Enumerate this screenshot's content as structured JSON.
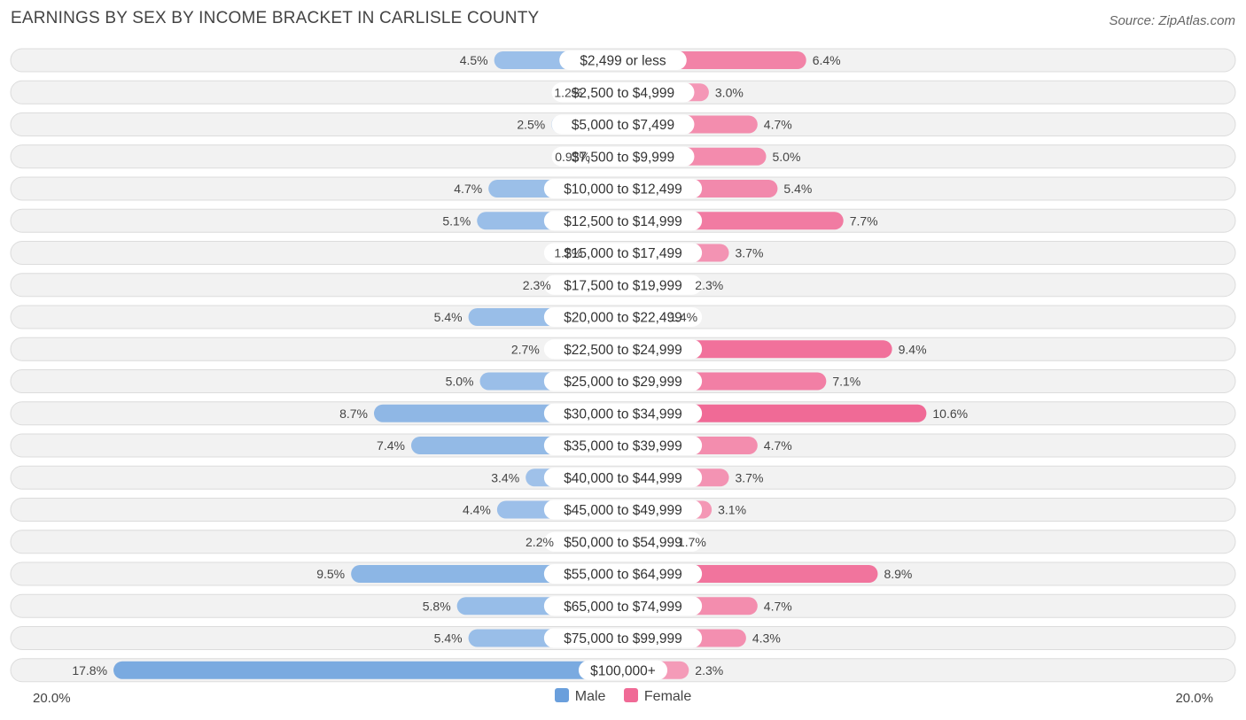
{
  "title": "EARNINGS BY SEX BY INCOME BRACKET IN CARLISLE COUNTY",
  "source": "Source: ZipAtlas.com",
  "colors": {
    "male": "#7aaae0",
    "male_light": "#a9c8ec",
    "female": "#f06a96",
    "female_light": "#f5a9c2",
    "row_bg": "#f2f2f2",
    "row_border": "#dcdcdc"
  },
  "legend": {
    "male": "Male",
    "female": "Female"
  },
  "axis": {
    "left_label": "20.0%",
    "right_label": "20.0%"
  },
  "chart_data": {
    "type": "bar",
    "orientation": "horizontal-diverging",
    "title": "EARNINGS BY SEX BY INCOME BRACKET IN CARLISLE COUNTY",
    "xlim": [
      -20,
      20
    ],
    "categories": [
      "$2,499 or less",
      "$2,500 to $4,999",
      "$5,000 to $7,499",
      "$7,500 to $9,999",
      "$10,000 to $12,499",
      "$12,500 to $14,999",
      "$15,000 to $17,499",
      "$17,500 to $19,999",
      "$20,000 to $22,499",
      "$22,500 to $24,999",
      "$25,000 to $29,999",
      "$30,000 to $34,999",
      "$35,000 to $39,999",
      "$40,000 to $44,999",
      "$45,000 to $49,999",
      "$50,000 to $54,999",
      "$55,000 to $64,999",
      "$65,000 to $74,999",
      "$75,000 to $99,999",
      "$100,000+"
    ],
    "series": [
      {
        "name": "Male",
        "values": [
          4.5,
          1.2,
          2.5,
          0.93,
          4.7,
          5.1,
          1.2,
          2.3,
          5.4,
          2.7,
          5.0,
          8.7,
          7.4,
          3.4,
          4.4,
          2.2,
          9.5,
          5.8,
          5.4,
          17.8
        ],
        "labels": [
          "4.5%",
          "1.2%",
          "2.5%",
          "0.93%",
          "4.7%",
          "5.1%",
          "1.2%",
          "2.3%",
          "5.4%",
          "2.7%",
          "5.0%",
          "8.7%",
          "7.4%",
          "3.4%",
          "4.4%",
          "2.2%",
          "9.5%",
          "5.8%",
          "5.4%",
          "17.8%"
        ]
      },
      {
        "name": "Female",
        "values": [
          6.4,
          3.0,
          4.7,
          5.0,
          5.4,
          7.7,
          3.7,
          2.3,
          1.4,
          9.4,
          7.1,
          10.6,
          4.7,
          3.7,
          3.1,
          1.7,
          8.9,
          4.7,
          4.3,
          2.3
        ],
        "labels": [
          "6.4%",
          "3.0%",
          "4.7%",
          "5.0%",
          "5.4%",
          "7.7%",
          "3.7%",
          "2.3%",
          "1.4%",
          "9.4%",
          "7.1%",
          "10.6%",
          "4.7%",
          "3.7%",
          "3.1%",
          "1.7%",
          "8.9%",
          "4.7%",
          "4.3%",
          "2.3%"
        ]
      }
    ]
  }
}
